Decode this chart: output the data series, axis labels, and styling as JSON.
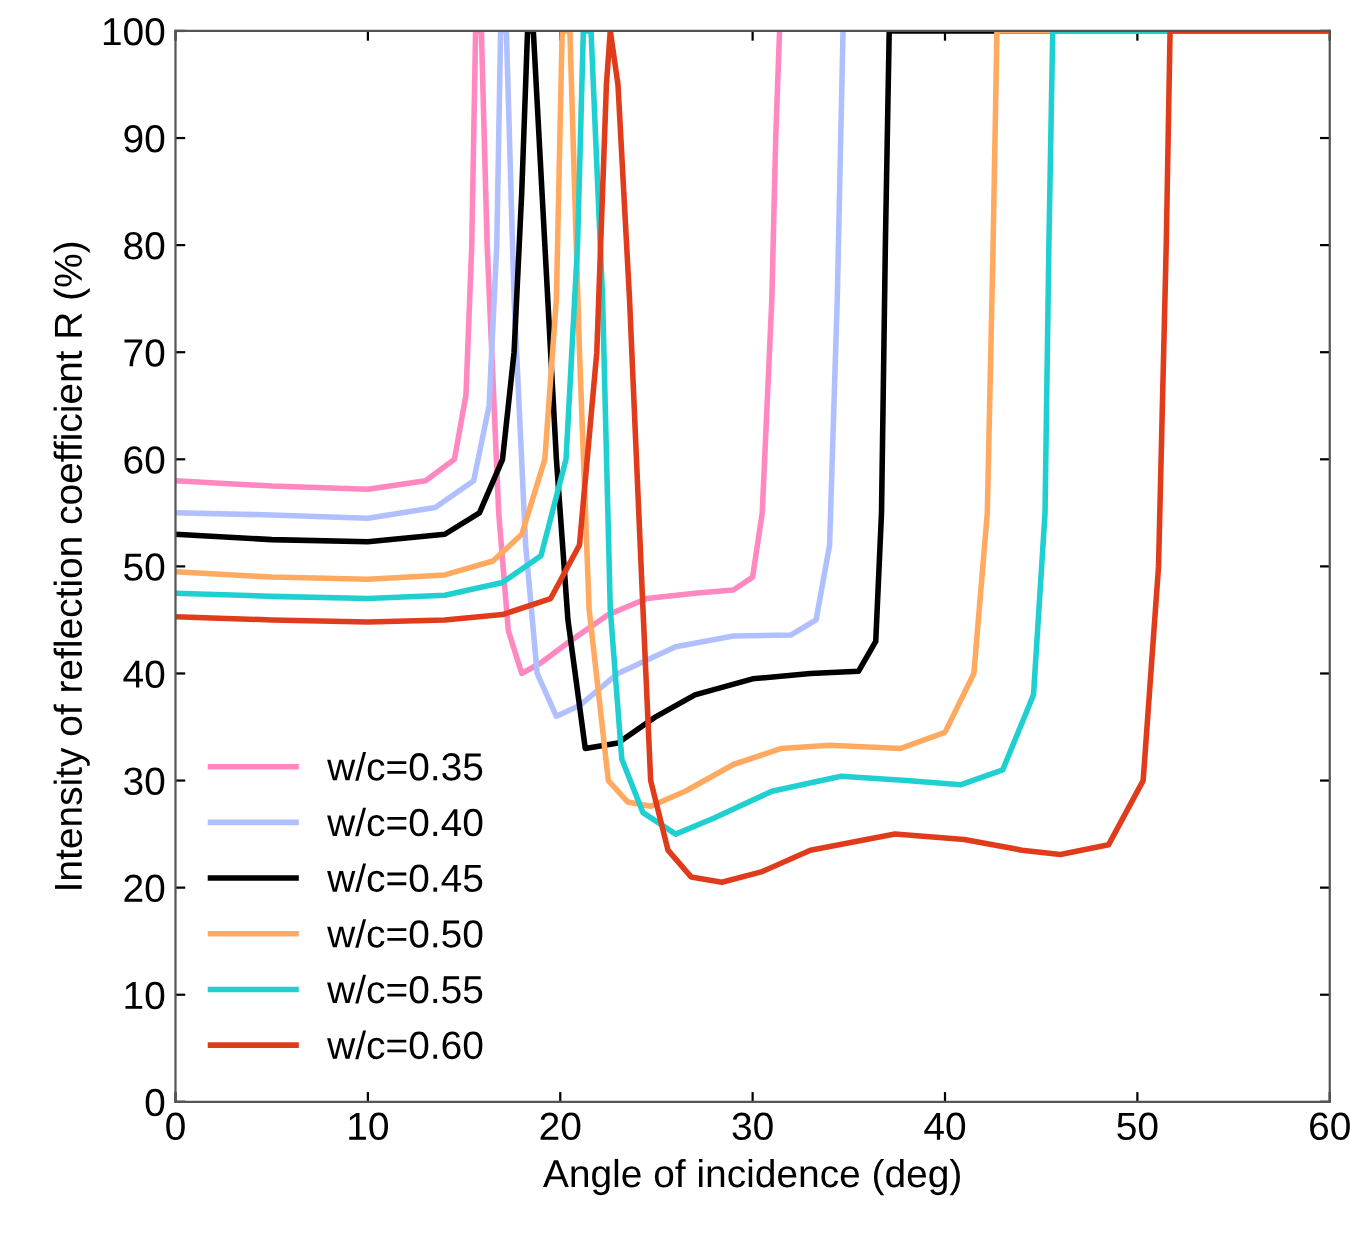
{
  "chart_data": {
    "type": "line",
    "xlabel": "Angle of incidence (deg)",
    "ylabel": "Intensity of reflection coefficient R (%)",
    "xlim": [
      0,
      60
    ],
    "ylim": [
      0,
      100
    ],
    "xticks": [
      0,
      10,
      20,
      30,
      40,
      50,
      60
    ],
    "yticks": [
      0,
      10,
      20,
      30,
      40,
      50,
      60,
      70,
      80,
      90,
      100
    ],
    "grid": false,
    "legend": "lower left",
    "marker": "none",
    "line_style": "solid",
    "series": [
      {
        "name": "w/c=0.35",
        "color": "#ff88c0",
        "x": [
          0,
          5,
          10,
          13,
          14.5,
          15.1,
          15.4,
          15.6,
          15.9,
          16.2,
          16.8,
          17.3,
          18,
          19,
          20.5,
          22.5,
          24.5,
          27,
          29,
          30,
          30.5,
          31,
          31.2,
          31.4
        ],
        "values": [
          58,
          57.5,
          57.2,
          58,
          60,
          66,
          80,
          100,
          100,
          80,
          55,
          44,
          40,
          41,
          43,
          45.5,
          47,
          47.5,
          47.8,
          49,
          55,
          75,
          90,
          100
        ]
      },
      {
        "name": "w/c=0.40",
        "color": "#b0c0ff",
        "x": [
          0,
          5,
          10,
          13.5,
          15.5,
          16.3,
          16.7,
          16.9,
          17.2,
          17.6,
          18.2,
          18.8,
          19.8,
          21,
          23,
          26,
          29,
          32,
          33.3,
          34,
          34.4,
          34.7
        ],
        "values": [
          55,
          54.8,
          54.5,
          55.5,
          58,
          65,
          80,
          100,
          100,
          75,
          52,
          40,
          36,
          37,
          40,
          42.5,
          43.5,
          43.6,
          45,
          52,
          75,
          100
        ]
      },
      {
        "name": "w/c=0.45",
        "color": "#000000",
        "x": [
          0,
          5,
          10,
          14,
          15.8,
          17,
          17.6,
          18,
          18.3,
          18.6,
          19.2,
          19.8,
          20.4,
          21.3,
          23,
          25,
          27,
          30,
          33,
          35.5,
          36.4,
          36.7,
          36.9,
          37.1,
          60
        ],
        "values": [
          53,
          52.5,
          52.3,
          53,
          55,
          60,
          70,
          85,
          100,
          100,
          80,
          60,
          45,
          33,
          33.5,
          36,
          38,
          39.5,
          40,
          40.2,
          43,
          55,
          80,
          100,
          100
        ]
      },
      {
        "name": "w/c=0.50",
        "color": "#ffaa60",
        "x": [
          0,
          5,
          10,
          14,
          16.5,
          18,
          19.2,
          19.8,
          20.1,
          20.5,
          21,
          21.5,
          22.5,
          23.5,
          24.7,
          26.5,
          29,
          31.5,
          34,
          37.7,
          40,
          41.5,
          42.2,
          42.5,
          42.7,
          60
        ],
        "values": [
          49.5,
          49,
          48.8,
          49.2,
          50.5,
          53,
          60,
          75,
          100,
          100,
          70,
          46,
          30,
          28,
          27.6,
          29,
          31.5,
          33,
          33.3,
          33,
          34.5,
          40,
          55,
          80,
          100,
          100
        ]
      },
      {
        "name": "w/c=0.55",
        "color": "#20d0d0",
        "x": [
          0,
          5,
          10,
          14,
          17,
          19,
          20.3,
          20.9,
          21.2,
          21.6,
          22.2,
          22.6,
          23.2,
          24.3,
          26,
          28,
          31,
          34.6,
          38,
          40.8,
          43,
          44.6,
          45.2,
          45.4,
          45.6,
          60
        ],
        "values": [
          47.5,
          47.2,
          47,
          47.3,
          48.5,
          51,
          60,
          80,
          100,
          100,
          75,
          46,
          32,
          27,
          25,
          26.5,
          29,
          30.4,
          30,
          29.6,
          31,
          38,
          55,
          80,
          100,
          100
        ]
      },
      {
        "name": "w/c=0.60",
        "color": "#e03c1c",
        "x": [
          0,
          5,
          10,
          14,
          17,
          19.5,
          21,
          21.9,
          22.4,
          22.6,
          23,
          23.6,
          24.3,
          24.7,
          25.6,
          26.8,
          28.4,
          30.5,
          33,
          37.4,
          41,
          44,
          46,
          48.5,
          50.3,
          51.1,
          51.5,
          51.7,
          60
        ],
        "values": [
          45.3,
          45,
          44.8,
          45,
          45.5,
          47,
          52,
          70,
          95,
          100,
          95,
          75,
          46,
          30,
          23.5,
          21,
          20.5,
          21.5,
          23.5,
          25,
          24.5,
          23.5,
          23.1,
          24,
          30,
          50,
          80,
          100,
          100
        ]
      }
    ]
  }
}
